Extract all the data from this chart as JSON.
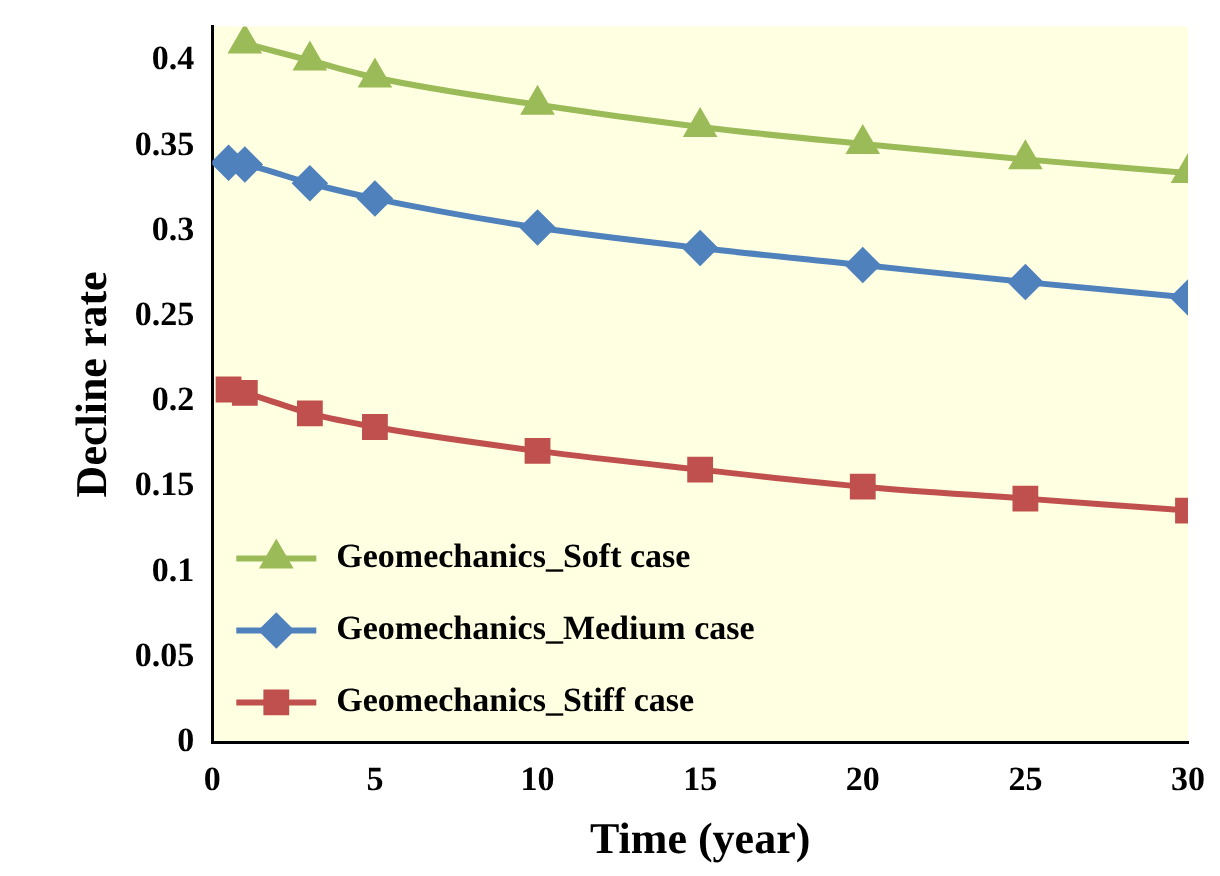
{
  "chart_data": {
    "type": "line",
    "xlabel": "Time (year)",
    "ylabel": "Decline rate",
    "xlim": [
      0,
      30
    ],
    "xticks": [
      0,
      5,
      10,
      15,
      20,
      25,
      30
    ],
    "ylim": [
      0,
      0.42
    ],
    "yticks": [
      0,
      0.05,
      0.1,
      0.15,
      0.2,
      0.25,
      0.3,
      0.35,
      0.4
    ],
    "grid": false,
    "legend": "bottom left",
    "line_style": "solid",
    "series": [
      {
        "name": "Geomechanics_Soft case",
        "color": "#9bbb59",
        "marker": "triangle",
        "x": [
          1,
          3,
          5,
          10,
          15,
          20,
          25,
          30
        ],
        "values": [
          0.41,
          0.4,
          0.39,
          0.374,
          0.361,
          0.351,
          0.342,
          0.334
        ]
      },
      {
        "name": "Geomechanics_Medium case",
        "color": "#4f81bd",
        "marker": "diamond",
        "x": [
          0.5,
          1,
          3,
          5,
          10,
          15,
          20,
          25,
          30
        ],
        "values": [
          0.34,
          0.339,
          0.328,
          0.319,
          0.302,
          0.29,
          0.28,
          0.27,
          0.261
        ]
      },
      {
        "name": "Geomechanics_Stiff case",
        "color": "#c0504d",
        "marker": "square",
        "x": [
          0.5,
          1,
          3,
          5,
          10,
          15,
          20,
          25,
          30
        ],
        "values": [
          0.207,
          0.205,
          0.193,
          0.185,
          0.171,
          0.16,
          0.15,
          0.143,
          0.136
        ]
      }
    ]
  }
}
